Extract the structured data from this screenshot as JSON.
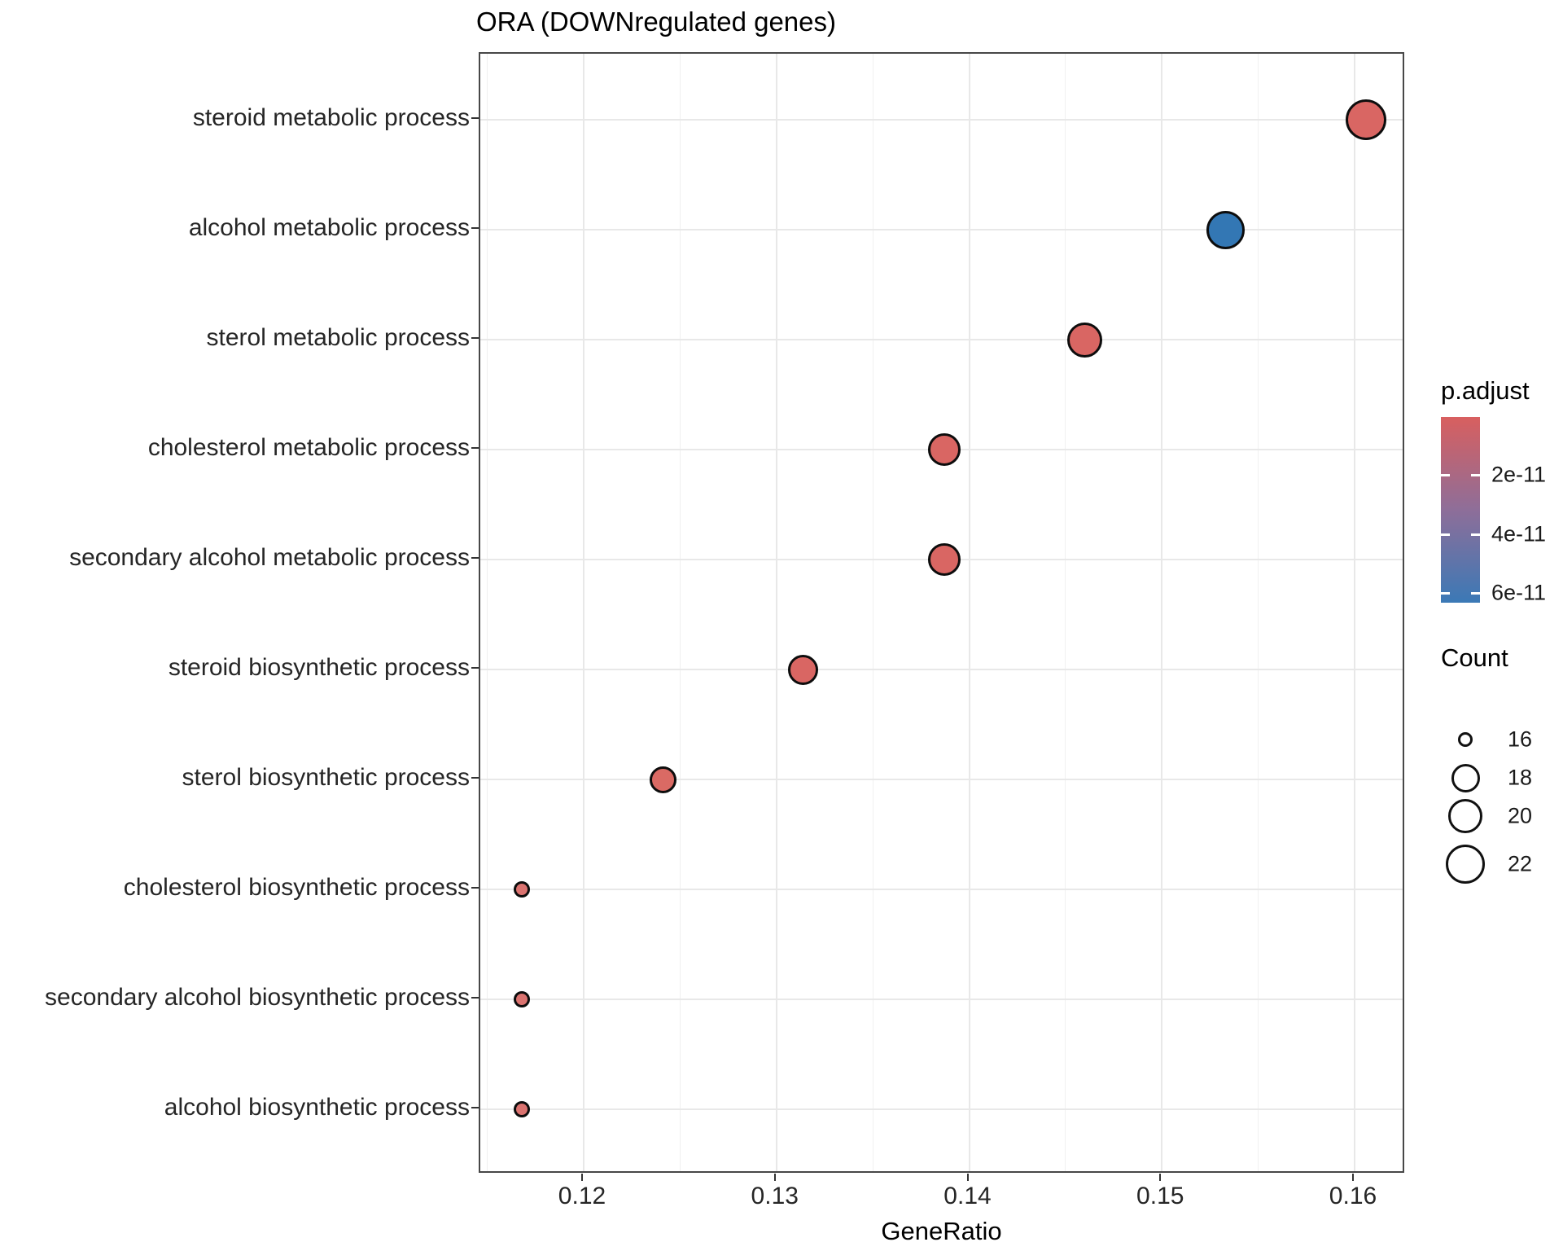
{
  "title": "ORA (DOWNregulated genes)",
  "chart_data": {
    "type": "scatter",
    "title": "ORA (DOWNregulated genes)",
    "xlabel": "GeneRatio",
    "ylabel": "",
    "grid": true,
    "xlim": [
      0.1146,
      0.1627
    ],
    "x_ticks": [
      0.12,
      0.13,
      0.14,
      0.15,
      0.16
    ],
    "x_tick_labels": [
      "0.12",
      "0.13",
      "0.14",
      "0.15",
      "0.16"
    ],
    "x_minor_ticks": [
      0.115,
      0.125,
      0.135,
      0.145,
      0.155
    ],
    "categories": [
      "steroid metabolic process",
      "alcohol metabolic process",
      "sterol metabolic process",
      "cholesterol metabolic process",
      "secondary alcohol metabolic process",
      "steroid biosynthetic process",
      "sterol biosynthetic process",
      "cholesterol biosynthetic process",
      "secondary alcohol biosynthetic process",
      "alcohol biosynthetic process"
    ],
    "points": [
      {
        "category": "steroid metabolic process",
        "gene_ratio": 0.1606,
        "count": 22,
        "color": "#D96663"
      },
      {
        "category": "alcohol metabolic process",
        "gene_ratio": 0.1533,
        "count": 21,
        "color": "#3377B4"
      },
      {
        "category": "sterol metabolic process",
        "gene_ratio": 0.146,
        "count": 20,
        "color": "#D96663"
      },
      {
        "category": "cholesterol metabolic process",
        "gene_ratio": 0.1387,
        "count": 19,
        "color": "#D96663"
      },
      {
        "category": "secondary alcohol metabolic process",
        "gene_ratio": 0.1387,
        "count": 19,
        "color": "#D96663"
      },
      {
        "category": "steroid biosynthetic process",
        "gene_ratio": 0.1314,
        "count": 18,
        "color": "#D96663"
      },
      {
        "category": "sterol biosynthetic process",
        "gene_ratio": 0.1241,
        "count": 17,
        "color": "#DA6A64"
      },
      {
        "category": "cholesterol biosynthetic process",
        "gene_ratio": 0.1168,
        "count": 16,
        "color": "#DB7370"
      },
      {
        "category": "secondary alcohol biosynthetic process",
        "gene_ratio": 0.1168,
        "count": 16,
        "color": "#DB7370"
      },
      {
        "category": "alcohol biosynthetic process",
        "gene_ratio": 0.1168,
        "count": 16,
        "color": "#DB7370"
      }
    ],
    "legend_p_adjust": {
      "title": "p.adjust",
      "tick_labels": [
        "2e-11",
        "4e-11",
        "6e-11"
      ],
      "gradient_top_color": "#D85F5F",
      "gradient_mid_color": "#8E6E99",
      "gradient_bottom_color": "#3B79B6"
    },
    "legend_count": {
      "title": "Count",
      "values": [
        16,
        18,
        20,
        22
      ]
    }
  }
}
